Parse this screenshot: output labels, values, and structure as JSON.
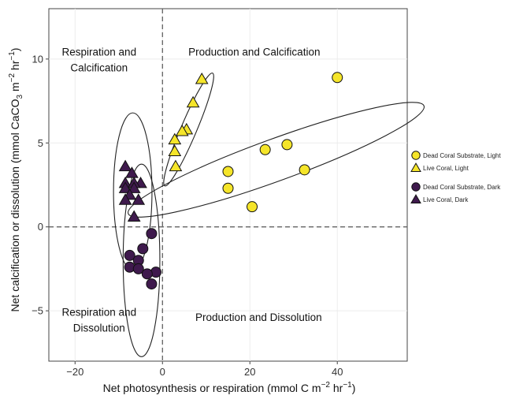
{
  "chart_data": {
    "type": "scatter",
    "title": "",
    "xlabel": "Net photosynthesis or respiration (mmol C m",
    "xlabel_sup": "−2",
    "xlabel_mid": " hr",
    "xlabel_sup2": "−1",
    "xlabel_end": ")",
    "ylabel": "Net calcification or dissolution (mmol CaCO",
    "ylabel_sub": "3",
    "ylabel_mid": " m",
    "ylabel_sup": "−2",
    "ylabel_mid2": " hr",
    "ylabel_sup2": "−1",
    "ylabel_end": ")",
    "xlim": [
      -26,
      56
    ],
    "ylim": [
      -8.0,
      13.0
    ],
    "xticks": [
      -20,
      0,
      20,
      40
    ],
    "yticks": [
      -5,
      0,
      5,
      10
    ],
    "xtick_labels": [
      "−20",
      "0",
      "20",
      "40"
    ],
    "ytick_labels": [
      "−5",
      "0",
      "5",
      "10"
    ],
    "grid": true,
    "legend_position": "right",
    "reference_lines": {
      "x": 0,
      "y": 0
    },
    "quadrant_labels": [
      {
        "lines": [
          "Respiration and",
          "Calcification"
        ],
        "x": -14.5,
        "y": 10.2
      },
      {
        "lines": [
          "Production and Calcification"
        ],
        "x": 21,
        "y": 10.2
      },
      {
        "lines": [
          "Respiration and",
          "Dissolution"
        ],
        "x": -14.5,
        "y": -5.3
      },
      {
        "lines": [
          "Production and Dissolution"
        ],
        "x": 22,
        "y": -5.6
      }
    ],
    "series": [
      {
        "name": "Dead Coral Substrate, Light",
        "marker": "circle",
        "color": "#f5e52a",
        "points": [
          [
            40,
            8.9
          ],
          [
            28.5,
            4.9
          ],
          [
            23.5,
            4.6
          ],
          [
            32.5,
            3.4
          ],
          [
            15,
            3.3
          ],
          [
            15,
            2.3
          ],
          [
            20.5,
            1.2
          ]
        ]
      },
      {
        "name": "Live Coral, Light",
        "marker": "triangle",
        "color": "#f5e52a",
        "points": [
          [
            9,
            8.8
          ],
          [
            7,
            7.4
          ],
          [
            5.5,
            5.8
          ],
          [
            4.5,
            5.7
          ],
          [
            2.8,
            5.2
          ],
          [
            2.8,
            4.5
          ],
          [
            3,
            3.6
          ]
        ]
      },
      {
        "name": "Dead Coral Substrate, Dark",
        "marker": "circle",
        "color": "#3f1a4d",
        "points": [
          [
            -2.5,
            -0.4
          ],
          [
            -4.5,
            -1.3
          ],
          [
            -7.5,
            -1.7
          ],
          [
            -5.5,
            -2
          ],
          [
            -7.5,
            -2.4
          ],
          [
            -5.5,
            -2.5
          ],
          [
            -1.5,
            -2.7
          ],
          [
            -3.5,
            -2.8
          ],
          [
            -2.5,
            -3.4
          ]
        ]
      },
      {
        "name": "Live Coral, Dark",
        "marker": "triangle",
        "color": "#3f1a4d",
        "points": [
          [
            -8.5,
            3.6
          ],
          [
            -7,
            3.2
          ],
          [
            -5,
            2.6
          ],
          [
            -8.5,
            2.6
          ],
          [
            -6.5,
            2.6
          ],
          [
            -8.5,
            2.3
          ],
          [
            -6.5,
            2.3
          ],
          [
            -7.5,
            1.9
          ],
          [
            -5.5,
            1.6
          ],
          [
            -8.5,
            1.6
          ],
          [
            -6.5,
            0.6
          ]
        ]
      }
    ],
    "ellipses": [
      {
        "cx": 26,
        "cy": 4.0,
        "rx": 36,
        "ry": 4.8,
        "angle": -20
      },
      {
        "cx": 6,
        "cy": 5.8,
        "rx": 14,
        "ry": 1.8,
        "angle": -67
      },
      {
        "cx": -6.8,
        "cy": 2.1,
        "rx": 4.4,
        "ry": 18,
        "angle": 0
      },
      {
        "cx": -4.8,
        "cy": -2.0,
        "rx": 4.2,
        "ry": 22,
        "angle": 0
      }
    ]
  }
}
